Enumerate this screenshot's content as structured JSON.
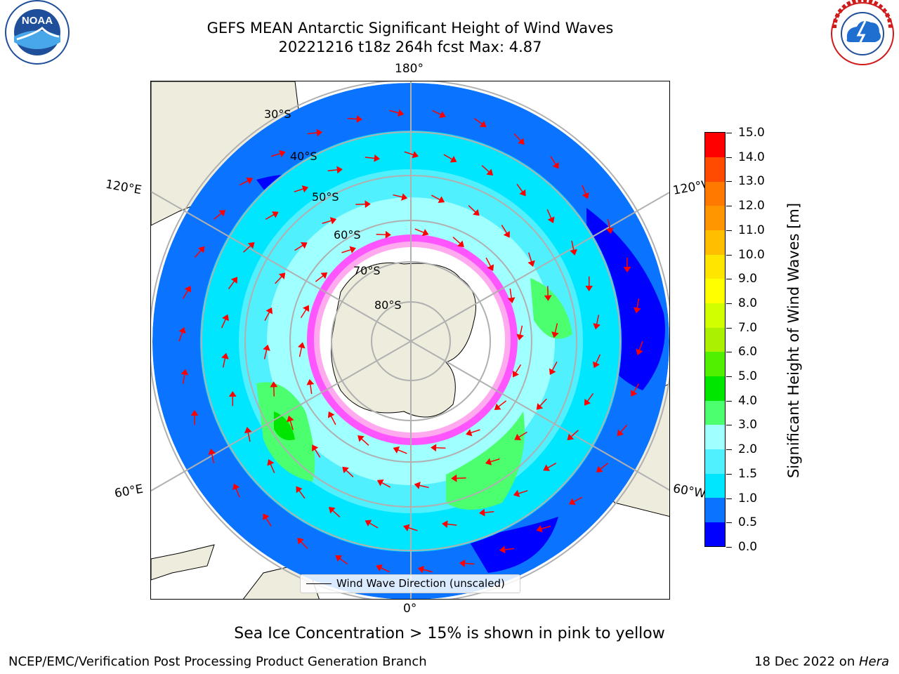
{
  "title_line1": "GEFS MEAN Antarctic Significant Height of Wind Waves",
  "title_line2": "20221216 t18z 264h fcst   Max: 4.87",
  "logos": {
    "left": "noaa-logo",
    "right": "nws-logo",
    "left_text": "NOAA",
    "left_ring_text": "NATIONAL OCEANIC AND ATMOSPHERIC ADMINISTRATION",
    "left_ring_bottom": "U.S. DEPARTMENT OF COMMERCE",
    "right_ring_text": "NATIONAL WEATHER SERVICE"
  },
  "map": {
    "projection": "south polar stereographic",
    "lon_labels": {
      "top": "180°",
      "bottom": "0°",
      "left_upper": "120°E",
      "left_lower": "60°E",
      "right_upper": "120°W",
      "right_lower": "60°W"
    },
    "lat_labels": [
      "30°S",
      "40°S",
      "50°S",
      "60°S",
      "70°S",
      "80°S"
    ],
    "land_color": "#eeecdc",
    "legend_label": "Wind Wave Direction (unscaled)",
    "arrow_color": "#ff0000"
  },
  "colorbar": {
    "label": "Significant Height of Wind Waves [m]",
    "ticks": [
      "15.0",
      "14.0",
      "13.0",
      "12.0",
      "11.0",
      "10.0",
      "9.0",
      "8.0",
      "7.0",
      "6.0",
      "5.0",
      "4.0",
      "3.0",
      "2.0",
      "1.5",
      "1.0",
      "0.5",
      "0.0"
    ],
    "colors": [
      "#0000ff",
      "#0a73ff",
      "#00e6ff",
      "#50f0ff",
      "#a0ffff",
      "#4bff6e",
      "#00e600",
      "#50f000",
      "#aaf000",
      "#d2ff00",
      "#ffff00",
      "#ffe600",
      "#ffbe00",
      "#ff9600",
      "#ff7800",
      "#ff4b00",
      "#ff0000"
    ]
  },
  "note": "Sea Ice Concentration > 15% is shown in pink to yellow",
  "footer": {
    "left": "NCEP/EMC/Verification Post Processing Product Generation Branch",
    "right_date": "18 Dec 2022 on ",
    "right_machine": "Hera"
  }
}
